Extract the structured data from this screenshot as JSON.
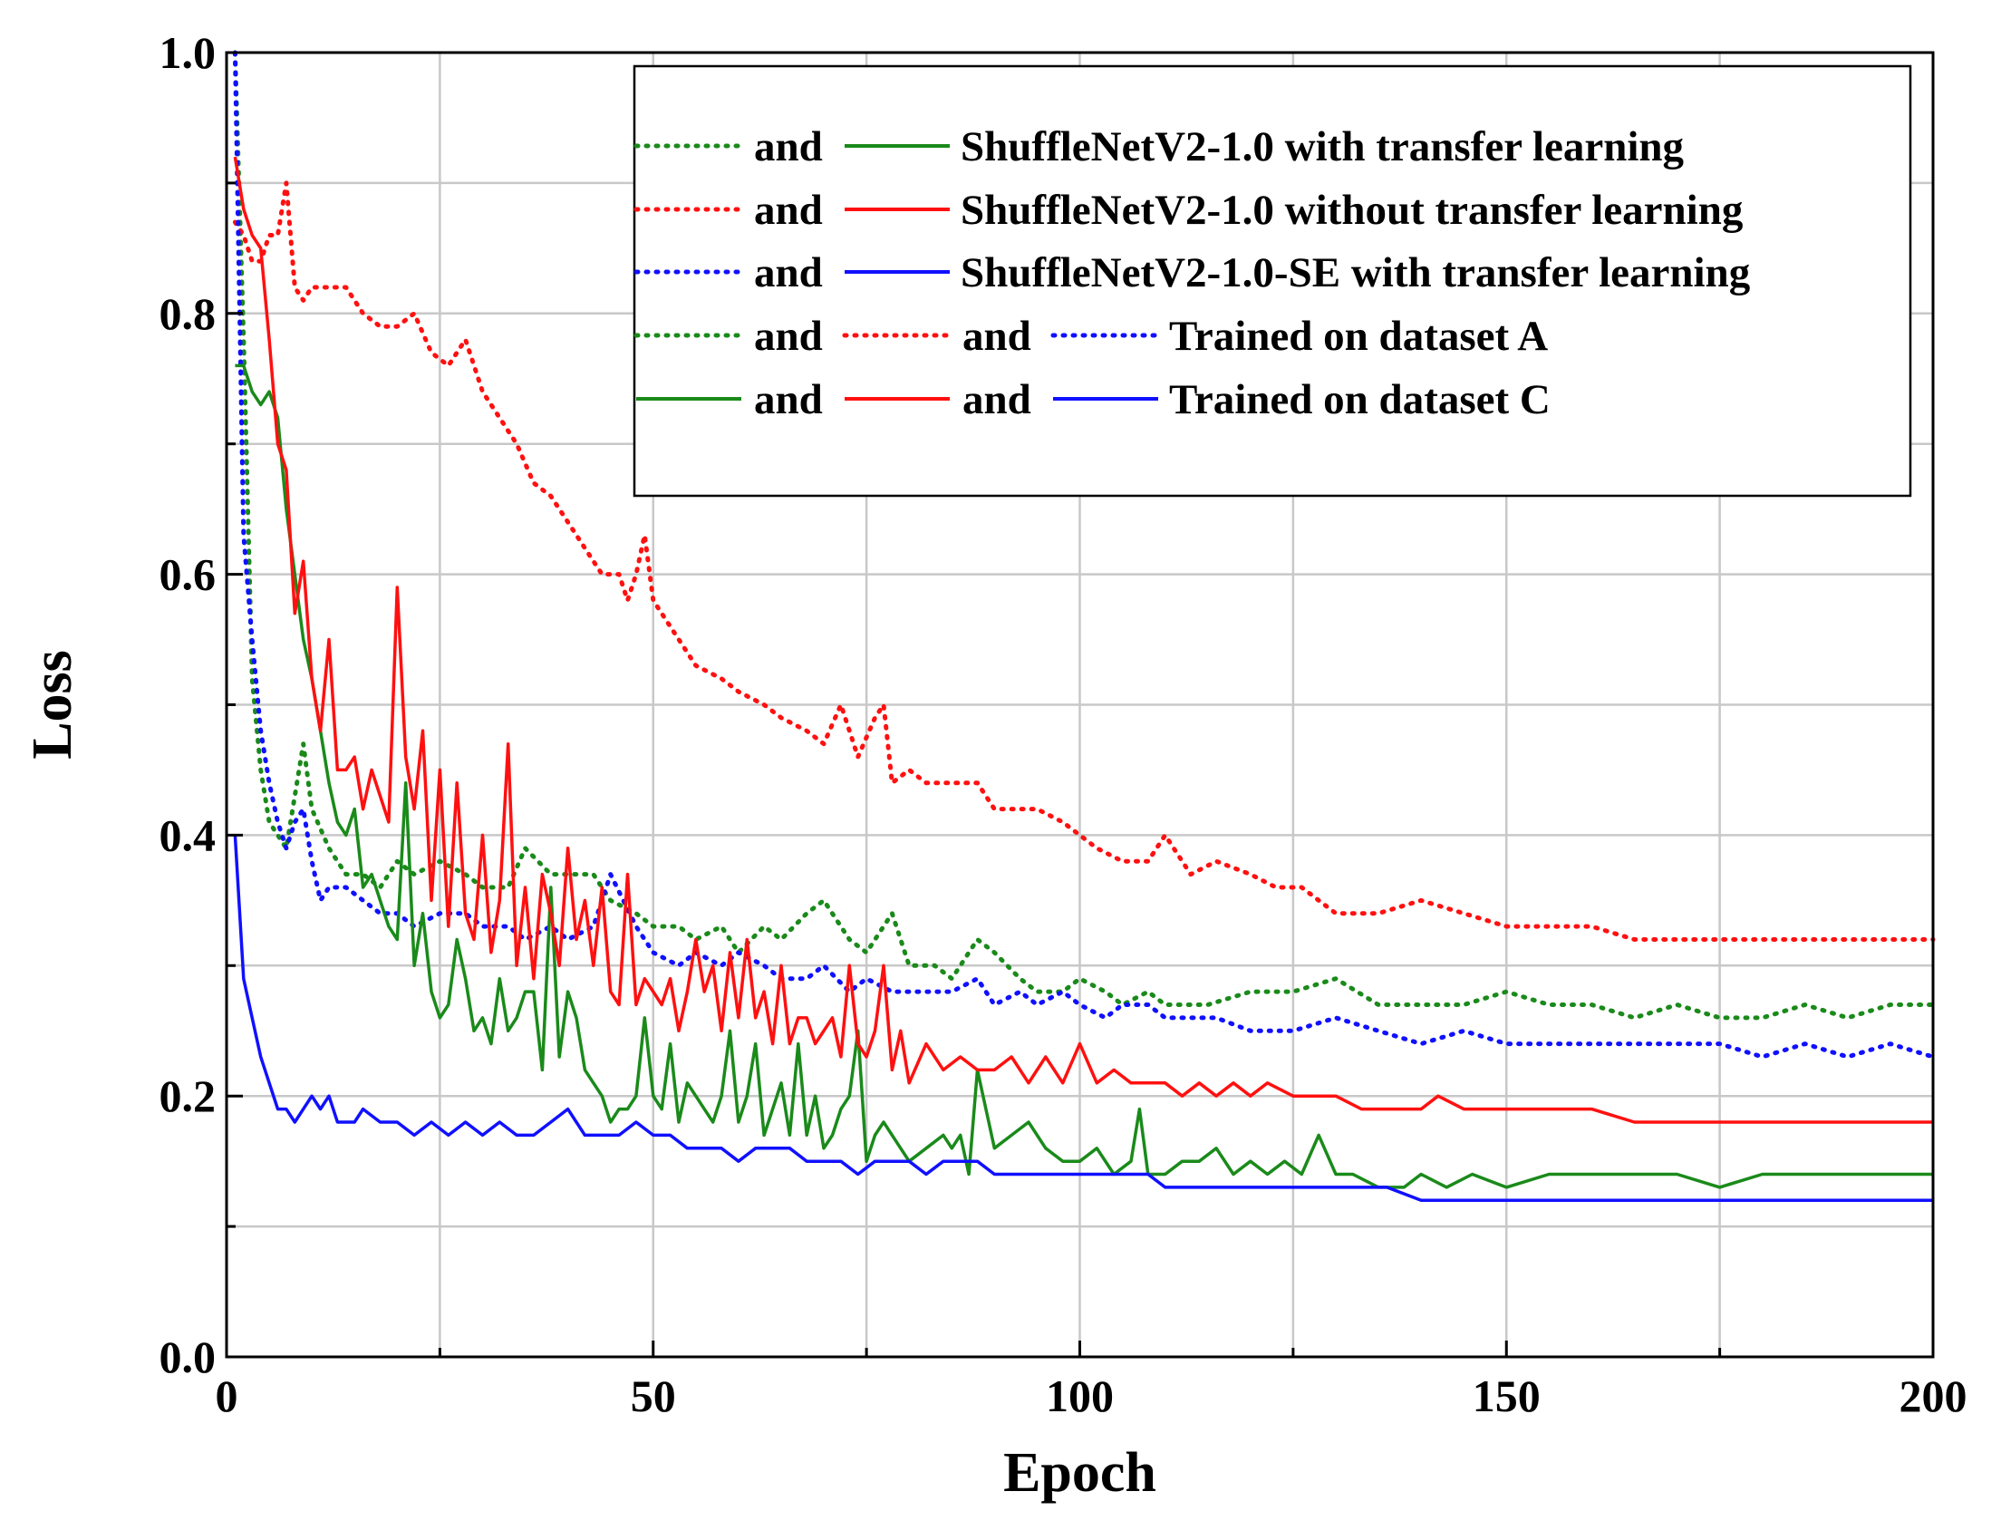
{
  "chart_data": {
    "type": "line",
    "xlabel": "Epoch",
    "ylabel": "Loss",
    "xlim": [
      0,
      200
    ],
    "ylim": [
      0,
      1.0
    ],
    "x_ticks": [
      "0",
      "50",
      "100",
      "150",
      "200"
    ],
    "y_ticks": [
      "0.0",
      "0.2",
      "0.4",
      "0.6",
      "0.8",
      "1.0"
    ],
    "grid": true,
    "legend_position": "top-right",
    "legend": {
      "joiner": "and",
      "rows": [
        {
          "label": "ShuffleNetV2-1.0 with transfer learning",
          "samples": [
            "dotted-green",
            "solid-green"
          ]
        },
        {
          "label": "ShuffleNetV2-1.0 without transfer learning",
          "samples": [
            "dotted-red",
            "solid-red"
          ]
        },
        {
          "label": "ShuffleNetV2-1.0-SE with transfer learning",
          "samples": [
            "dotted-blue",
            "solid-blue"
          ]
        },
        {
          "label": "Trained on dataset A",
          "samples": [
            "dotted-green",
            "dotted-red",
            "dotted-blue"
          ]
        },
        {
          "label": "Trained on dataset C",
          "samples": [
            "solid-green",
            "solid-red",
            "solid-blue"
          ]
        }
      ]
    },
    "colors": {
      "green": "#1a8a1a",
      "red": "#ff1010",
      "blue": "#1010ff"
    },
    "series": [
      {
        "id": "green-dotted-A",
        "color": "#1a8a1a",
        "style": "dotted",
        "x": [
          1,
          2,
          3,
          4,
          5,
          6,
          7,
          8,
          9,
          10,
          12,
          14,
          16,
          18,
          20,
          22,
          25,
          28,
          30,
          33,
          35,
          38,
          40,
          43,
          45,
          48,
          50,
          53,
          55,
          58,
          60,
          63,
          65,
          68,
          70,
          73,
          75,
          78,
          80,
          83,
          85,
          88,
          90,
          93,
          95,
          98,
          100,
          103,
          105,
          108,
          110,
          115,
          120,
          125,
          130,
          135,
          140,
          145,
          150,
          155,
          160,
          165,
          170,
          175,
          180,
          185,
          190,
          195,
          200
        ],
        "y": [
          1.0,
          0.78,
          0.52,
          0.45,
          0.41,
          0.4,
          0.39,
          0.43,
          0.47,
          0.42,
          0.39,
          0.37,
          0.37,
          0.36,
          0.38,
          0.37,
          0.38,
          0.37,
          0.36,
          0.36,
          0.39,
          0.37,
          0.37,
          0.37,
          0.35,
          0.34,
          0.33,
          0.33,
          0.32,
          0.33,
          0.31,
          0.33,
          0.32,
          0.34,
          0.35,
          0.32,
          0.31,
          0.34,
          0.3,
          0.3,
          0.29,
          0.32,
          0.31,
          0.29,
          0.28,
          0.28,
          0.29,
          0.28,
          0.27,
          0.28,
          0.27,
          0.27,
          0.28,
          0.28,
          0.29,
          0.27,
          0.27,
          0.27,
          0.28,
          0.27,
          0.27,
          0.26,
          0.27,
          0.26,
          0.26,
          0.27,
          0.26,
          0.27,
          0.27
        ]
      },
      {
        "id": "red-dotted-A",
        "color": "#ff1010",
        "style": "dotted",
        "x": [
          1,
          2,
          3,
          4,
          5,
          6,
          7,
          8,
          9,
          10,
          12,
          14,
          16,
          18,
          20,
          22,
          24,
          26,
          28,
          30,
          32,
          34,
          36,
          38,
          40,
          42,
          44,
          46,
          47,
          48,
          49,
          50,
          52,
          55,
          58,
          60,
          63,
          65,
          68,
          70,
          72,
          74,
          76,
          77,
          78,
          80,
          82,
          85,
          88,
          90,
          93,
          95,
          98,
          100,
          102,
          105,
          108,
          110,
          113,
          116,
          120,
          123,
          126,
          130,
          135,
          140,
          145,
          150,
          155,
          160,
          165,
          170,
          175,
          180,
          185,
          190,
          195,
          200
        ],
        "y": [
          0.87,
          0.86,
          0.84,
          0.84,
          0.86,
          0.86,
          0.9,
          0.82,
          0.81,
          0.82,
          0.82,
          0.82,
          0.8,
          0.79,
          0.79,
          0.8,
          0.77,
          0.76,
          0.78,
          0.74,
          0.72,
          0.7,
          0.67,
          0.66,
          0.64,
          0.62,
          0.6,
          0.6,
          0.58,
          0.6,
          0.63,
          0.58,
          0.56,
          0.53,
          0.52,
          0.51,
          0.5,
          0.49,
          0.48,
          0.47,
          0.5,
          0.46,
          0.49,
          0.5,
          0.44,
          0.45,
          0.44,
          0.44,
          0.44,
          0.42,
          0.42,
          0.42,
          0.41,
          0.4,
          0.39,
          0.38,
          0.38,
          0.4,
          0.37,
          0.38,
          0.37,
          0.36,
          0.36,
          0.34,
          0.34,
          0.35,
          0.34,
          0.33,
          0.33,
          0.33,
          0.32,
          0.32,
          0.32,
          0.32,
          0.32,
          0.32,
          0.32,
          0.32
        ]
      },
      {
        "id": "blue-dotted-A",
        "color": "#1010ff",
        "style": "dotted",
        "x": [
          1,
          2,
          3,
          4,
          5,
          6,
          7,
          8,
          9,
          10,
          11,
          12,
          14,
          16,
          18,
          20,
          22,
          25,
          28,
          30,
          33,
          35,
          38,
          40,
          43,
          45,
          48,
          50,
          53,
          55,
          58,
          60,
          63,
          65,
          68,
          70,
          73,
          75,
          78,
          80,
          83,
          85,
          88,
          90,
          93,
          95,
          98,
          100,
          103,
          105,
          108,
          110,
          113,
          116,
          120,
          125,
          130,
          135,
          140,
          145,
          150,
          155,
          160,
          165,
          170,
          175,
          180,
          185,
          190,
          195,
          200
        ],
        "y": [
          1.0,
          0.63,
          0.55,
          0.48,
          0.44,
          0.41,
          0.39,
          0.41,
          0.42,
          0.38,
          0.35,
          0.36,
          0.36,
          0.35,
          0.34,
          0.34,
          0.33,
          0.34,
          0.34,
          0.33,
          0.33,
          0.32,
          0.33,
          0.32,
          0.33,
          0.37,
          0.33,
          0.31,
          0.3,
          0.31,
          0.3,
          0.31,
          0.3,
          0.29,
          0.29,
          0.3,
          0.28,
          0.29,
          0.28,
          0.28,
          0.28,
          0.28,
          0.29,
          0.27,
          0.28,
          0.27,
          0.28,
          0.27,
          0.26,
          0.27,
          0.27,
          0.26,
          0.26,
          0.26,
          0.25,
          0.25,
          0.26,
          0.25,
          0.24,
          0.25,
          0.24,
          0.24,
          0.24,
          0.24,
          0.24,
          0.24,
          0.23,
          0.24,
          0.23,
          0.24,
          0.23
        ]
      },
      {
        "id": "green-solid-C",
        "color": "#1a8a1a",
        "style": "solid",
        "x": [
          1,
          2,
          3,
          4,
          5,
          6,
          7,
          8,
          9,
          10,
          11,
          12,
          13,
          14,
          15,
          16,
          17,
          18,
          19,
          20,
          21,
          22,
          23,
          24,
          25,
          26,
          27,
          28,
          29,
          30,
          31,
          32,
          33,
          34,
          35,
          36,
          37,
          38,
          39,
          40,
          41,
          42,
          43,
          44,
          45,
          46,
          47,
          48,
          49,
          50,
          51,
          52,
          53,
          54,
          55,
          56,
          57,
          58,
          59,
          60,
          61,
          62,
          63,
          64,
          65,
          66,
          67,
          68,
          69,
          70,
          71,
          72,
          73,
          74,
          75,
          76,
          77,
          78,
          79,
          80,
          82,
          84,
          85,
          86,
          87,
          88,
          90,
          92,
          94,
          96,
          98,
          100,
          102,
          104,
          106,
          107,
          108,
          110,
          112,
          114,
          116,
          118,
          120,
          122,
          124,
          126,
          128,
          130,
          132,
          135,
          138,
          140,
          143,
          146,
          150,
          155,
          160,
          165,
          170,
          175,
          180,
          185,
          190,
          195,
          200
        ],
        "y": [
          0.76,
          0.76,
          0.74,
          0.73,
          0.74,
          0.72,
          0.65,
          0.6,
          0.55,
          0.52,
          0.48,
          0.44,
          0.41,
          0.4,
          0.42,
          0.36,
          0.37,
          0.35,
          0.33,
          0.32,
          0.44,
          0.3,
          0.34,
          0.28,
          0.26,
          0.27,
          0.32,
          0.29,
          0.25,
          0.26,
          0.24,
          0.29,
          0.25,
          0.26,
          0.28,
          0.28,
          0.22,
          0.36,
          0.23,
          0.28,
          0.26,
          0.22,
          0.21,
          0.2,
          0.18,
          0.19,
          0.19,
          0.2,
          0.26,
          0.2,
          0.19,
          0.24,
          0.18,
          0.21,
          0.2,
          0.19,
          0.18,
          0.2,
          0.25,
          0.18,
          0.2,
          0.24,
          0.17,
          0.19,
          0.21,
          0.17,
          0.24,
          0.17,
          0.2,
          0.16,
          0.17,
          0.19,
          0.2,
          0.25,
          0.15,
          0.17,
          0.18,
          0.17,
          0.16,
          0.15,
          0.16,
          0.17,
          0.16,
          0.17,
          0.14,
          0.22,
          0.16,
          0.17,
          0.18,
          0.16,
          0.15,
          0.15,
          0.16,
          0.14,
          0.15,
          0.19,
          0.14,
          0.14,
          0.15,
          0.15,
          0.16,
          0.14,
          0.15,
          0.14,
          0.15,
          0.14,
          0.17,
          0.14,
          0.14,
          0.13,
          0.13,
          0.14,
          0.13,
          0.14,
          0.13,
          0.14,
          0.14,
          0.14,
          0.14,
          0.13,
          0.14,
          0.14,
          0.14,
          0.14,
          0.14
        ]
      },
      {
        "id": "red-solid-C",
        "color": "#ff1010",
        "style": "solid",
        "x": [
          1,
          2,
          3,
          4,
          5,
          6,
          7,
          8,
          9,
          10,
          11,
          12,
          13,
          14,
          15,
          16,
          17,
          18,
          19,
          20,
          21,
          22,
          23,
          24,
          25,
          26,
          27,
          28,
          29,
          30,
          31,
          32,
          33,
          34,
          35,
          36,
          37,
          38,
          39,
          40,
          41,
          42,
          43,
          44,
          45,
          46,
          47,
          48,
          49,
          50,
          51,
          52,
          53,
          54,
          55,
          56,
          57,
          58,
          59,
          60,
          61,
          62,
          63,
          64,
          65,
          66,
          67,
          68,
          69,
          70,
          71,
          72,
          73,
          74,
          75,
          76,
          77,
          78,
          79,
          80,
          82,
          84,
          86,
          88,
          90,
          92,
          94,
          96,
          98,
          100,
          102,
          104,
          106,
          108,
          110,
          112,
          114,
          116,
          118,
          120,
          122,
          125,
          128,
          130,
          133,
          136,
          140,
          142,
          145,
          150,
          155,
          160,
          165,
          170,
          175,
          180,
          185,
          190,
          195,
          200
        ],
        "y": [
          0.92,
          0.88,
          0.86,
          0.85,
          0.78,
          0.7,
          0.68,
          0.57,
          0.61,
          0.52,
          0.48,
          0.55,
          0.45,
          0.45,
          0.46,
          0.42,
          0.45,
          0.43,
          0.41,
          0.59,
          0.46,
          0.42,
          0.48,
          0.35,
          0.45,
          0.33,
          0.44,
          0.34,
          0.32,
          0.4,
          0.31,
          0.35,
          0.47,
          0.3,
          0.36,
          0.29,
          0.37,
          0.34,
          0.3,
          0.39,
          0.32,
          0.35,
          0.3,
          0.36,
          0.28,
          0.27,
          0.37,
          0.27,
          0.29,
          0.28,
          0.27,
          0.29,
          0.25,
          0.28,
          0.32,
          0.28,
          0.3,
          0.25,
          0.31,
          0.26,
          0.32,
          0.26,
          0.28,
          0.24,
          0.3,
          0.24,
          0.26,
          0.26,
          0.24,
          0.25,
          0.26,
          0.23,
          0.3,
          0.24,
          0.23,
          0.25,
          0.3,
          0.22,
          0.25,
          0.21,
          0.24,
          0.22,
          0.23,
          0.22,
          0.22,
          0.23,
          0.21,
          0.23,
          0.21,
          0.24,
          0.21,
          0.22,
          0.21,
          0.21,
          0.21,
          0.2,
          0.21,
          0.2,
          0.21,
          0.2,
          0.21,
          0.2,
          0.2,
          0.2,
          0.19,
          0.19,
          0.19,
          0.2,
          0.19,
          0.19,
          0.19,
          0.19,
          0.18,
          0.18,
          0.18,
          0.18,
          0.18,
          0.18,
          0.18,
          0.18
        ]
      },
      {
        "id": "blue-solid-C",
        "color": "#1010ff",
        "style": "solid",
        "x": [
          1,
          2,
          3,
          4,
          5,
          6,
          7,
          8,
          9,
          10,
          11,
          12,
          13,
          14,
          15,
          16,
          18,
          20,
          22,
          24,
          26,
          28,
          30,
          32,
          34,
          36,
          38,
          40,
          42,
          44,
          46,
          48,
          50,
          52,
          54,
          56,
          58,
          60,
          62,
          64,
          66,
          68,
          70,
          72,
          74,
          76,
          78,
          80,
          82,
          84,
          86,
          88,
          90,
          92,
          94,
          96,
          98,
          100,
          102,
          104,
          106,
          108,
          110,
          112,
          114,
          116,
          118,
          120,
          122,
          125,
          128,
          130,
          133,
          136,
          140,
          143,
          146,
          150,
          155,
          160,
          165,
          170,
          175,
          180,
          185,
          190,
          195,
          200
        ],
        "y": [
          0.4,
          0.29,
          0.26,
          0.23,
          0.21,
          0.19,
          0.19,
          0.18,
          0.19,
          0.2,
          0.19,
          0.2,
          0.18,
          0.18,
          0.18,
          0.19,
          0.18,
          0.18,
          0.17,
          0.18,
          0.17,
          0.18,
          0.17,
          0.18,
          0.17,
          0.17,
          0.18,
          0.19,
          0.17,
          0.17,
          0.17,
          0.18,
          0.17,
          0.17,
          0.16,
          0.16,
          0.16,
          0.15,
          0.16,
          0.16,
          0.16,
          0.15,
          0.15,
          0.15,
          0.14,
          0.15,
          0.15,
          0.15,
          0.14,
          0.15,
          0.15,
          0.15,
          0.14,
          0.14,
          0.14,
          0.14,
          0.14,
          0.14,
          0.14,
          0.14,
          0.14,
          0.14,
          0.13,
          0.13,
          0.13,
          0.13,
          0.13,
          0.13,
          0.13,
          0.13,
          0.13,
          0.13,
          0.13,
          0.13,
          0.12,
          0.12,
          0.12,
          0.12,
          0.12,
          0.12,
          0.12,
          0.12,
          0.12,
          0.12,
          0.12,
          0.12,
          0.12,
          0.12
        ]
      }
    ]
  }
}
